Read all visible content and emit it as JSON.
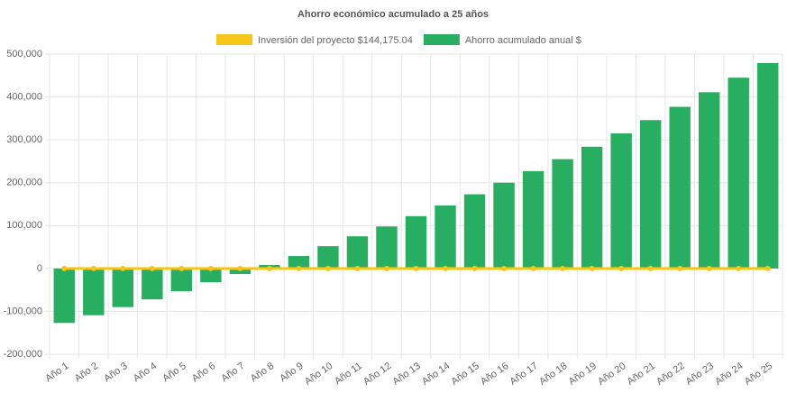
{
  "chart_data": {
    "type": "bar",
    "title": "Ahorro económico acumulado a 25 años",
    "categories": [
      "Año 1",
      "Año 2",
      "Año 3",
      "Año 4",
      "Año 5",
      "Año 6",
      "Año 7",
      "Año 8",
      "Año 9",
      "Año 10",
      "Año 11",
      "Año 12",
      "Año 13",
      "Año 14",
      "Año 15",
      "Año 16",
      "Año 17",
      "Año 18",
      "Año 19",
      "Año 20",
      "Año 21",
      "Año 22",
      "Año 23",
      "Año 24",
      "Año 25"
    ],
    "series": [
      {
        "name": "Inversión del proyecto $144,175.04",
        "type": "line",
        "color": "#f5c518",
        "values": [
          0,
          0,
          0,
          0,
          0,
          0,
          0,
          0,
          0,
          0,
          0,
          0,
          0,
          0,
          0,
          0,
          0,
          0,
          0,
          0,
          0,
          0,
          0,
          0,
          0
        ]
      },
      {
        "name": "Ahorro acumulado anual $",
        "type": "bar",
        "color": "#27ae60",
        "values": [
          -127000,
          -109000,
          -90000,
          -72000,
          -53000,
          -32000,
          -13000,
          8000,
          29000,
          52000,
          75000,
          98000,
          122000,
          147000,
          173000,
          200000,
          227000,
          255000,
          284000,
          315000,
          346000,
          377000,
          411000,
          445000,
          479000
        ]
      }
    ],
    "ylim": [
      -200000,
      500000
    ],
    "yticks": [
      {
        "value": -200000,
        "label": "-200,000"
      },
      {
        "value": -100000,
        "label": "-100,000"
      },
      {
        "value": 0,
        "label": "0"
      },
      {
        "value": 100000,
        "label": "100,000"
      },
      {
        "value": 200000,
        "label": "200,000"
      },
      {
        "value": 300000,
        "label": "300,000"
      },
      {
        "value": 400000,
        "label": "400,000"
      },
      {
        "value": 500000,
        "label": "500,000"
      }
    ],
    "grid": true
  }
}
